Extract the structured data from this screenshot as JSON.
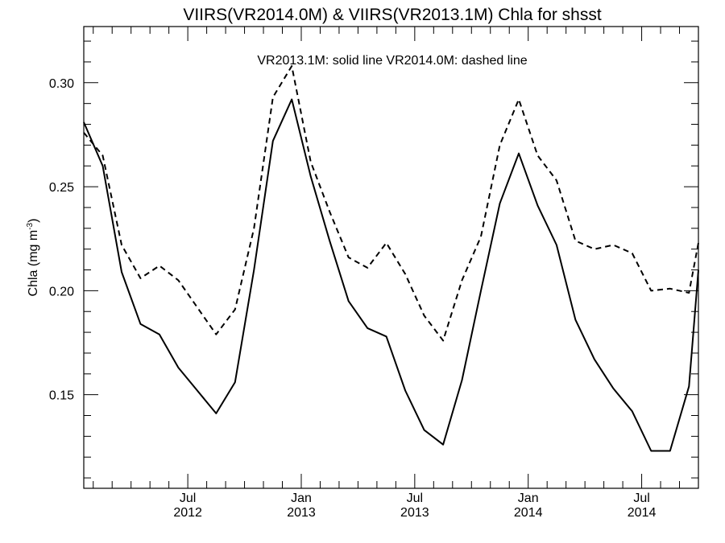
{
  "chart_data": {
    "type": "line",
    "title": "VIIRS(VR2014.0M) & VIIRS(VR2013.1M)  Chla for shsst",
    "annotation": "VR2013.1M: solid line   VR2014.0M: dashed line",
    "ylabel": "Chla (mg m",
    "ylabel_unit_exponent": "-3",
    "ylabel_close": ")",
    "ylim": [
      0.105,
      0.327
    ],
    "y_ticks": [
      "0.15",
      "0.20",
      "0.25",
      "0.30"
    ],
    "y_tick_values": [
      0.15,
      0.2,
      0.25,
      0.3
    ],
    "x_tick_labels": [
      {
        "month": "Jul",
        "year": "2012",
        "x": 5.5
      },
      {
        "month": "Jan",
        "year": "2013",
        "x": 11.5
      },
      {
        "month": "Jul",
        "year": "2013",
        "x": 17.5
      },
      {
        "month": "Jan",
        "year": "2014",
        "x": 23.5
      },
      {
        "month": "Jul",
        "year": "2014",
        "x": 29.5
      }
    ],
    "xlim": [
      0,
      32.5
    ],
    "grid": false,
    "series": [
      {
        "name": "VR2013.1M",
        "style": "solid",
        "x": [
          0,
          1,
          2,
          3,
          4,
          5,
          6,
          7,
          8,
          9,
          10,
          11,
          12,
          13,
          14,
          15,
          16,
          17,
          18,
          19,
          20,
          21,
          22,
          23,
          24,
          25,
          26,
          27,
          28,
          29,
          30,
          31,
          32,
          32.5
        ],
        "values": [
          0.281,
          0.26,
          0.209,
          0.184,
          0.179,
          0.163,
          0.152,
          0.141,
          0.156,
          0.21,
          0.272,
          0.292,
          0.255,
          0.224,
          0.195,
          0.182,
          0.178,
          0.152,
          0.133,
          0.126,
          0.157,
          0.2,
          0.242,
          0.266,
          0.241,
          0.222,
          0.186,
          0.167,
          0.153,
          0.142,
          0.123,
          0.123,
          0.154,
          0.21
        ]
      },
      {
        "name": "VR2014.0M",
        "style": "dashed",
        "x": [
          0,
          1,
          2,
          3,
          4,
          5,
          6,
          7,
          8,
          9,
          10,
          11,
          12,
          13,
          14,
          15,
          16,
          17,
          18,
          19,
          20,
          21,
          22,
          23,
          24,
          25,
          26,
          27,
          28,
          29,
          30,
          31,
          32,
          32.5
        ],
        "values": [
          0.276,
          0.265,
          0.222,
          0.206,
          0.212,
          0.205,
          0.192,
          0.179,
          0.191,
          0.23,
          0.293,
          0.308,
          0.262,
          0.238,
          0.216,
          0.211,
          0.223,
          0.208,
          0.188,
          0.176,
          0.205,
          0.226,
          0.27,
          0.292,
          0.265,
          0.253,
          0.224,
          0.22,
          0.222,
          0.218,
          0.2,
          0.201,
          0.199,
          0.223
        ]
      }
    ]
  }
}
